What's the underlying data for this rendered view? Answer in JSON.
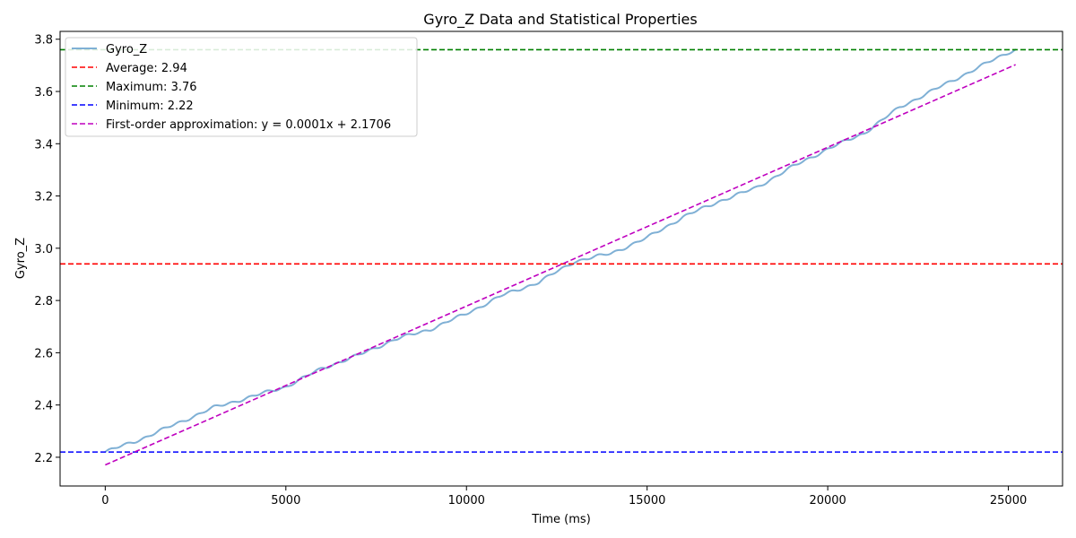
{
  "chart_data": {
    "type": "line",
    "title": "Gyro_Z Data and Statistical Properties",
    "xlabel": "Time (ms)",
    "ylabel": "Gyro_Z",
    "xlim": [
      -1250,
      26500
    ],
    "ylim": [
      2.09,
      3.83
    ],
    "x_ticks": [
      0,
      5000,
      10000,
      15000,
      20000,
      25000
    ],
    "y_ticks": [
      2.2,
      2.4,
      2.6,
      2.8,
      3.0,
      3.2,
      3.4,
      3.6,
      3.8
    ],
    "x_tick_labels": [
      "0",
      "5000",
      "10000",
      "15000",
      "20000",
      "25000"
    ],
    "y_tick_labels": [
      "2.2",
      "2.4",
      "2.6",
      "2.8",
      "3.0",
      "3.2",
      "3.4",
      "3.6",
      "3.8"
    ],
    "grid": false,
    "legend_position": "upper left",
    "series": [
      {
        "name": "Gyro_Z",
        "color": "#7fb0d5",
        "style": "solid",
        "x": [
          0,
          1000,
          2000,
          3000,
          4000,
          5000,
          6000,
          7000,
          8000,
          9000,
          10000,
          11000,
          12000,
          13000,
          14000,
          15000,
          16000,
          17000,
          18000,
          19000,
          20000,
          21000,
          22000,
          23000,
          24000,
          25000,
          25200
        ],
        "y": [
          2.22,
          2.27,
          2.33,
          2.39,
          2.43,
          2.47,
          2.54,
          2.59,
          2.65,
          2.69,
          2.75,
          2.82,
          2.87,
          2.95,
          2.98,
          3.04,
          3.12,
          3.18,
          3.23,
          3.31,
          3.38,
          3.44,
          3.54,
          3.61,
          3.68,
          3.75,
          3.76
        ]
      }
    ],
    "reference_lines": [
      {
        "name": "Average: 2.94",
        "orientation": "horizontal",
        "y": 2.94,
        "color": "#ff0000",
        "style": "dashed"
      },
      {
        "name": "Maximum: 3.76",
        "orientation": "horizontal",
        "y": 3.76,
        "color": "#008000",
        "style": "dashed"
      },
      {
        "name": "Minimum: 2.22",
        "orientation": "horizontal",
        "y": 2.22,
        "color": "#0000ff",
        "style": "dashed"
      }
    ],
    "fit_line": {
      "name": "First-order approximation: y = 0.0001x + 2.1706",
      "color": "#bf00bf",
      "style": "dashed",
      "x": [
        0,
        25200
      ],
      "y": [
        2.1706,
        3.7026
      ]
    },
    "legend": [
      "Gyro_Z",
      "Average: 2.94",
      "Maximum: 3.76",
      "Minimum: 2.22",
      "First-order approximation: y = 0.0001x + 2.1706"
    ]
  }
}
